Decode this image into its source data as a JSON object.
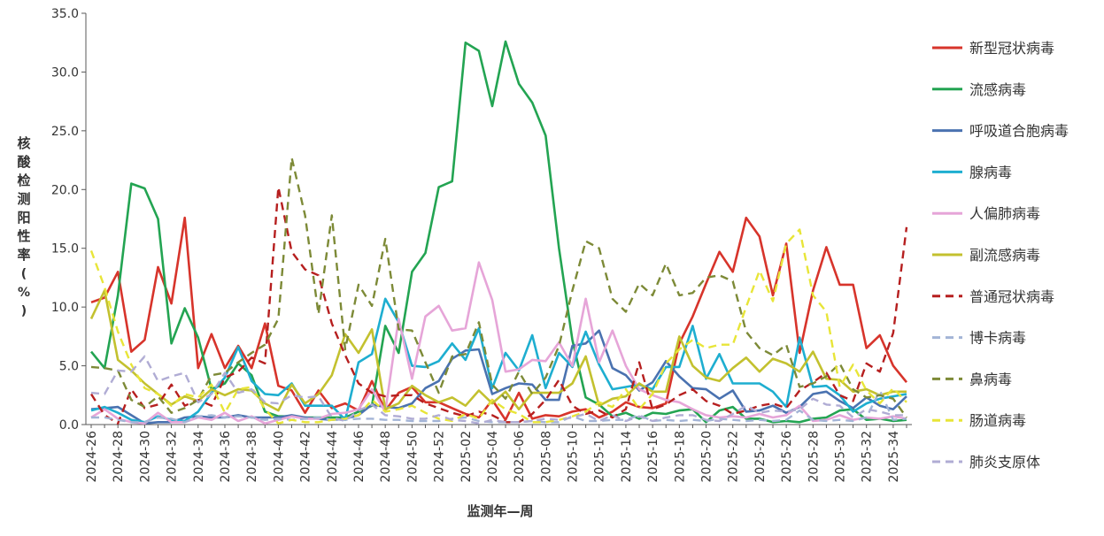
{
  "chart_data": {
    "type": "line",
    "xlabel": "监测年—周",
    "ylabel": "核酸检测阳性率(%)",
    "ylim": [
      0,
      35
    ],
    "yticks": [
      "0.0",
      "5.0",
      "10.0",
      "15.0",
      "20.0",
      "25.0",
      "30.0",
      "35.0"
    ],
    "x": [
      "2024-26",
      "2024-27",
      "2024-28",
      "2024-29",
      "2024-30",
      "2024-31",
      "2024-32",
      "2024-33",
      "2024-34",
      "2024-35",
      "2024-36",
      "2024-37",
      "2024-38",
      "2024-39",
      "2024-40",
      "2024-41",
      "2024-42",
      "2024-43",
      "2024-44",
      "2024-45",
      "2024-46",
      "2024-47",
      "2024-48",
      "2024-49",
      "2024-50",
      "2024-51",
      "2024-52",
      "2025-01",
      "2025-02",
      "2025-03",
      "2025-04",
      "2025-05",
      "2025-06",
      "2025-07",
      "2025-08",
      "2025-09",
      "2025-10",
      "2025-11",
      "2025-12",
      "2025-13",
      "2025-14",
      "2025-15",
      "2025-16",
      "2025-17",
      "2025-18",
      "2025-19",
      "2025-20",
      "2025-21",
      "2025-22",
      "2025-23",
      "2025-24",
      "2025-25",
      "2025-26",
      "2025-27",
      "2025-28",
      "2025-29",
      "2025-30",
      "2025-31",
      "2025-32",
      "2025-33",
      "2025-34",
      "2025-35"
    ],
    "xtick_labels": [
      "2024-26",
      "2024-28",
      "2024-30",
      "2024-32",
      "2024-34",
      "2024-36",
      "2024-38",
      "2024-40",
      "2024-42",
      "2024-44",
      "2024-46",
      "2024-48",
      "2024-50",
      "2024-52",
      "2025-02",
      "2025-04",
      "2025-06",
      "2025-08",
      "2025-10",
      "2025-12",
      "2025-14",
      "2025-16",
      "2025-18",
      "2025-20",
      "2025-22",
      "2025-24",
      "2025-26",
      "2025-28",
      "2025-30",
      "2025-32",
      "2025-34"
    ],
    "grid": false,
    "legend_position": "right",
    "series": [
      {
        "name": "新型冠状病毒",
        "color": "#d7342b",
        "dash": "solid",
        "values": [
          10.4,
          10.8,
          13.0,
          6.2,
          7.2,
          13.4,
          10.3,
          17.6,
          4.8,
          7.7,
          4.8,
          6.7,
          4.8,
          8.6,
          3.3,
          2.9,
          1.0,
          2.9,
          1.4,
          1.8,
          1.2,
          3.7,
          1.2,
          2.7,
          3.2,
          1.9,
          1.9,
          1.4,
          0.9,
          0.6,
          2.1,
          0.4,
          2.7,
          0.5,
          0.8,
          0.7,
          1.1,
          1.3,
          0.6,
          1.1,
          1.9,
          1.5,
          1.4,
          1.8,
          6.9,
          9.2,
          12.0,
          14.7,
          13.0,
          17.6,
          16.0,
          11.0,
          15.4,
          6.1,
          11.4,
          15.1,
          11.9,
          11.9,
          6.5,
          7.6,
          5.0,
          3.6
        ]
      },
      {
        "name": "流感病毒",
        "color": "#23a452",
        "dash": "solid",
        "values": [
          6.2,
          4.8,
          11.0,
          20.5,
          20.1,
          17.5,
          6.9,
          9.9,
          7.4,
          3.0,
          3.5,
          5.2,
          4.2,
          1.1,
          0.7,
          0.7,
          0.6,
          0.6,
          0.6,
          0.6,
          1.1,
          1.6,
          8.4,
          6.1,
          13.0,
          14.6,
          20.2,
          20.7,
          32.5,
          31.8,
          27.1,
          32.6,
          29.0,
          27.4,
          24.6,
          15.0,
          7.2,
          2.3,
          1.7,
          0.7,
          1.0,
          0.5,
          1.0,
          0.9,
          1.2,
          1.3,
          0.2,
          1.2,
          1.5,
          0.5,
          0.5,
          0.2,
          0.3,
          0.2,
          0.5,
          0.6,
          1.2,
          1.3,
          0.4,
          0.5,
          0.3,
          0.4
        ]
      },
      {
        "name": "呼吸道合胞病毒",
        "color": "#4a72b0",
        "dash": "solid",
        "values": [
          1.3,
          1.4,
          1.5,
          0.8,
          0.1,
          0.2,
          0.2,
          0.6,
          0.7,
          0.6,
          0.6,
          0.8,
          0.6,
          0.6,
          0.6,
          0.8,
          0.6,
          0.5,
          0.4,
          0.5,
          0.8,
          1.7,
          1.5,
          1.4,
          1.8,
          3.1,
          3.7,
          5.6,
          6.3,
          6.4,
          2.6,
          3.1,
          3.5,
          3.4,
          2.1,
          2.1,
          6.7,
          6.9,
          8.0,
          4.8,
          4.2,
          2.9,
          3.6,
          5.4,
          4.1,
          3.1,
          3.0,
          2.2,
          2.9,
          1.1,
          1.2,
          1.6,
          1.0,
          1.5,
          2.6,
          2.8,
          2.0,
          1.4,
          2.3,
          1.6,
          1.3,
          2.4
        ]
      },
      {
        "name": "腺病毒",
        "color": "#1eaed0",
        "dash": "solid",
        "values": [
          1.2,
          1.5,
          1.0,
          0.4,
          0.2,
          0.7,
          0.4,
          0.3,
          1.1,
          2.7,
          4.0,
          6.6,
          3.7,
          2.6,
          2.5,
          3.5,
          1.6,
          1.6,
          1.6,
          0.4,
          5.3,
          6.0,
          10.7,
          8.7,
          5.0,
          4.9,
          5.4,
          6.9,
          5.5,
          8.2,
          3.1,
          6.1,
          4.6,
          7.6,
          3.1,
          6.1,
          4.9,
          7.9,
          5.1,
          3.0,
          3.2,
          3.4,
          3.0,
          4.9,
          4.9,
          8.4,
          3.9,
          6.0,
          3.5,
          3.5,
          3.5,
          2.8,
          1.5,
          7.4,
          3.2,
          3.3,
          2.5,
          1.1,
          1.8,
          2.2,
          2.4,
          2.6
        ]
      },
      {
        "name": "人偏肺病毒",
        "color": "#e6a5d8",
        "dash": "solid",
        "values": [
          0.6,
          1.3,
          0.5,
          0.2,
          0.1,
          1.0,
          0.2,
          0.2,
          0.6,
          0.4,
          1.0,
          0.3,
          0.7,
          0.1,
          0.4,
          0.7,
          0.5,
          0.5,
          0.9,
          1.0,
          1.3,
          3.0,
          1.1,
          9.0,
          3.9,
          9.2,
          10.1,
          8.0,
          8.2,
          13.8,
          10.6,
          4.5,
          4.7,
          5.5,
          5.4,
          7.0,
          5.0,
          10.7,
          5.3,
          8.0,
          5.0,
          3.0,
          2.5,
          2.1,
          1.9,
          1.3,
          0.8,
          0.6,
          0.7,
          0.6,
          0.9,
          0.6,
          0.8,
          1.6,
          0.3,
          0.4,
          0.8,
          0.4,
          0.6,
          0.5,
          0.7,
          0.5
        ]
      },
      {
        "name": "副流感病毒",
        "color": "#c3c12f",
        "dash": "solid",
        "values": [
          9.0,
          11.4,
          5.5,
          4.6,
          3.5,
          2.6,
          1.7,
          2.4,
          2.0,
          3.0,
          2.5,
          3.0,
          2.9,
          1.8,
          1.2,
          3.4,
          1.8,
          2.6,
          4.2,
          7.7,
          6.1,
          8.1,
          1.3,
          1.8,
          3.3,
          2.5,
          1.9,
          2.3,
          1.6,
          2.9,
          1.8,
          2.8,
          1.3,
          2.7,
          2.7,
          2.7,
          3.5,
          5.8,
          1.6,
          2.2,
          2.4,
          3.5,
          2.8,
          2.8,
          7.5,
          5.0,
          4.0,
          3.7,
          4.8,
          5.7,
          4.5,
          5.6,
          5.2,
          4.5,
          6.2,
          3.9,
          3.8,
          2.8,
          3.0,
          2.5,
          2.8,
          2.8
        ]
      },
      {
        "name": "普通冠状病毒",
        "color": "#b61f1f",
        "dash": "dashed",
        "values": [
          2.6,
          0.8,
          0.1,
          3.0,
          1.4,
          1.7,
          3.4,
          1.6,
          2.1,
          1.6,
          4.0,
          4.5,
          5.7,
          5.2,
          20.2,
          14.7,
          13.2,
          12.7,
          8.6,
          5.9,
          3.5,
          2.7,
          2.4,
          2.5,
          2.5,
          1.8,
          1.4,
          1.0,
          0.7,
          1.1,
          0.8,
          0.2,
          0.2,
          0.9,
          2.1,
          3.8,
          1.6,
          0.9,
          1.2,
          0.6,
          1.3,
          5.3,
          1.3,
          1.7,
          2.5,
          3.0,
          2.0,
          1.6,
          0.9,
          1.2,
          1.6,
          1.8,
          1.4,
          2.9,
          3.6,
          4.4,
          2.5,
          2.0,
          5.2,
          4.5,
          7.8,
          16.8
        ]
      },
      {
        "name": "博卡病毒",
        "color": "#a3b4d6",
        "dash": "dashed",
        "values": [
          0.6,
          0.6,
          0.4,
          0.2,
          0.2,
          0.6,
          0.5,
          0.2,
          0.7,
          0.8,
          0.6,
          0.7,
          0.6,
          0.4,
          0.5,
          0.4,
          0.5,
          0.6,
          0.4,
          0.4,
          0.5,
          0.5,
          0.4,
          0.4,
          0.3,
          0.3,
          0.3,
          0.5,
          0.6,
          0.3,
          0.2,
          0.2,
          0.2,
          0.3,
          0.2,
          0.2,
          0.7,
          0.3,
          0.3,
          0.4,
          0.4,
          0.8,
          0.3,
          0.4,
          0.3,
          0.4,
          0.3,
          0.5,
          0.4,
          0.3,
          0.4,
          0.3,
          0.4,
          1.2,
          0.4,
          0.3,
          0.4,
          0.3,
          0.6,
          2.9,
          0.4,
          0.5
        ]
      },
      {
        "name": "鼻病毒",
        "color": "#7d8a37",
        "dash": "dashed",
        "values": [
          4.9,
          4.8,
          4.6,
          2.1,
          1.5,
          2.4,
          1.0,
          1.4,
          2.1,
          4.2,
          4.4,
          5.3,
          6.1,
          6.8,
          9.0,
          22.7,
          17.8,
          9.4,
          17.8,
          6.4,
          11.9,
          10.1,
          15.8,
          8.1,
          8.0,
          5.3,
          2.7,
          5.8,
          6.0,
          8.7,
          3.4,
          2.2,
          4.5,
          2.6,
          4.0,
          6.7,
          11.4,
          15.6,
          15.0,
          10.7,
          9.6,
          12.0,
          11.0,
          13.7,
          11.0,
          11.2,
          12.5,
          12.7,
          12.2,
          7.9,
          6.5,
          5.9,
          6.8,
          3.2,
          3.5,
          4.1,
          5.2,
          3.0,
          2.3,
          2.5,
          2.2,
          0.6
        ]
      },
      {
        "name": "肠道病毒",
        "color": "#e8e538",
        "dash": "dashed",
        "values": [
          14.8,
          11.7,
          7.9,
          5.1,
          3.1,
          2.6,
          1.6,
          2.6,
          2.3,
          3.4,
          1.0,
          3.0,
          3.2,
          1.3,
          0.1,
          0.4,
          0.2,
          0.2,
          0.4,
          0.5,
          0.8,
          2.1,
          1.1,
          1.3,
          1.6,
          1.0,
          0.5,
          0.3,
          0.9,
          0.5,
          2.1,
          1.3,
          0.9,
          0.2,
          0.2,
          0.4,
          0.7,
          1.1,
          1.9,
          1.5,
          3.0,
          1.3,
          2.6,
          5.2,
          6.4,
          7.2,
          6.5,
          6.8,
          6.8,
          10.0,
          13.1,
          10.5,
          15.4,
          16.6,
          11.0,
          9.6,
          3.2,
          5.1,
          2.9,
          1.8,
          3.1,
          1.9
        ]
      },
      {
        "name": "肺炎支原体",
        "color": "#b0acd4",
        "dash": "dashed",
        "values": [
          2.7,
          2.6,
          4.6,
          4.5,
          5.8,
          3.7,
          4.1,
          4.4,
          1.9,
          2.6,
          4.4,
          2.7,
          3.0,
          1.9,
          1.8,
          2.5,
          2.3,
          2.4,
          0.6,
          0.3,
          1.2,
          1.7,
          0.8,
          0.7,
          0.5,
          0.5,
          0.8,
          0.4,
          0.3,
          0.1,
          0.4,
          0.2,
          0.2,
          0.3,
          0.5,
          0.4,
          0.6,
          0.9,
          0.3,
          0.8,
          0.3,
          0.7,
          0.3,
          0.6,
          0.8,
          0.8,
          0.4,
          0.3,
          0.9,
          1.6,
          1.0,
          1.2,
          1.1,
          1.3,
          2.2,
          1.7,
          1.6,
          0.6,
          1.3,
          1.1,
          0.8,
          0.8
        ]
      }
    ]
  }
}
